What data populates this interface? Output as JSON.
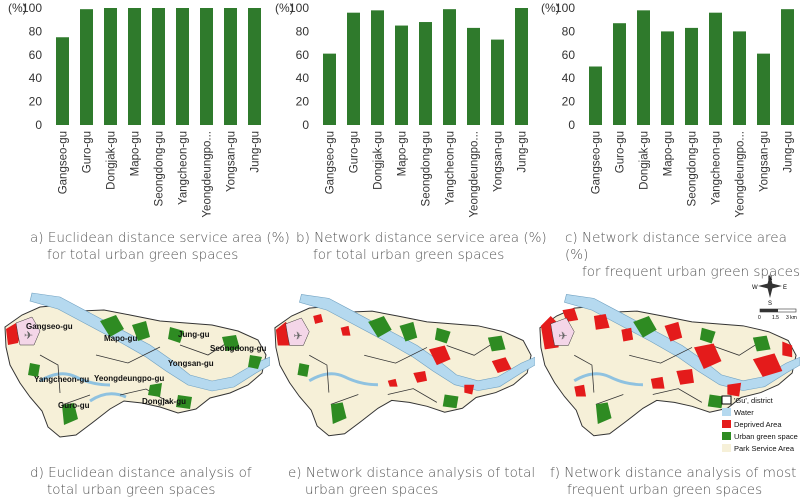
{
  "chart_data": [
    {
      "id": "a",
      "type": "bar",
      "ylabel": "(%)",
      "ylim": [
        0,
        100
      ],
      "yticks": [
        0,
        20,
        40,
        60,
        80,
        100
      ],
      "categories": [
        "Gangseo-gu",
        "Guro-gu",
        "Dongjak-gu",
        "Mapo-gu",
        "Seongdong-gu",
        "Yangcheon-gu",
        "Yeongdeungpo...",
        "Yongsan-gu",
        "Jung-gu"
      ],
      "values": [
        75,
        99,
        100,
        100,
        100,
        100,
        100,
        100,
        100
      ],
      "color": "#2f7a2c",
      "caption_line1": "a) Euclidean distance service area (%)",
      "caption_line2": "for total urban green spaces"
    },
    {
      "id": "b",
      "type": "bar",
      "ylabel": "(%)",
      "ylim": [
        0,
        100
      ],
      "yticks": [
        0,
        20,
        40,
        60,
        80,
        100
      ],
      "categories": [
        "Gangseo-gu",
        "Guro-gu",
        "Dongjak-gu",
        "Mapo-gu",
        "Seongdong-gu",
        "Yangcheon-gu",
        "Yeongdeungpo...",
        "Yongsan-gu",
        "Jung-gu"
      ],
      "values": [
        61,
        96,
        98,
        85,
        88,
        99,
        83,
        73,
        100
      ],
      "color": "#2f7a2c",
      "caption_line1": "b) Network distance service area (%)",
      "caption_line2": "for total urban green spaces"
    },
    {
      "id": "c",
      "type": "bar",
      "ylabel": "(%)",
      "ylim": [
        0,
        100
      ],
      "yticks": [
        0,
        20,
        40,
        60,
        80,
        100
      ],
      "categories": [
        "Gangseo-gu",
        "Guro-gu",
        "Dongjak-gu",
        "Mapo-gu",
        "Seongdong-gu",
        "Yangcheon-gu",
        "Yeongdeungpo...",
        "Yongsan-gu",
        "Jung-gu"
      ],
      "values": [
        50,
        87,
        98,
        80,
        83,
        96,
        80,
        61,
        99
      ],
      "color": "#2f7a2c",
      "caption_line1": "c) Network distance service area (%)",
      "caption_line2": "for frequent urban green spaces"
    }
  ],
  "maps": [
    {
      "id": "d",
      "caption_line1": "d) Euclidean distance analysis of",
      "caption_line2": "total urban green spaces",
      "labels": {
        "gangseo": "Gangseo-gu",
        "mapo": "Mapo-gu",
        "jung": "Jung-gu",
        "seongdong": "Seongdong-gu",
        "yongsan": "Yongsan-gu",
        "yangcheon": "Yangcheon-gu",
        "yeongdeungpo": "Yeongdeungpo-gu",
        "guro": "Guro-gu",
        "dongjak": "Dongjak-gu"
      }
    },
    {
      "id": "e",
      "caption_line1": "e) Network distance analysis of total",
      "caption_line2": "urban green spaces"
    },
    {
      "id": "f",
      "caption_line1": "f) Network distance analysis of most",
      "caption_line2": "frequent urban green spaces"
    }
  ],
  "compass": {
    "n": "N",
    "s": "S",
    "e": "E",
    "w": "W"
  },
  "scalebar": {
    "t0": "0",
    "t1": "1.5",
    "t2": "3 km"
  },
  "legend": [
    {
      "label": "'Gu', district",
      "color": "#ffffff"
    },
    {
      "label": "Water",
      "color": "#b5d9ef"
    },
    {
      "label": "Deprived Area",
      "color": "#e41b1b"
    },
    {
      "label": "Urban green space",
      "color": "#2e8b22"
    },
    {
      "label": "Park Service Area",
      "color": "#f6f0d8"
    }
  ]
}
